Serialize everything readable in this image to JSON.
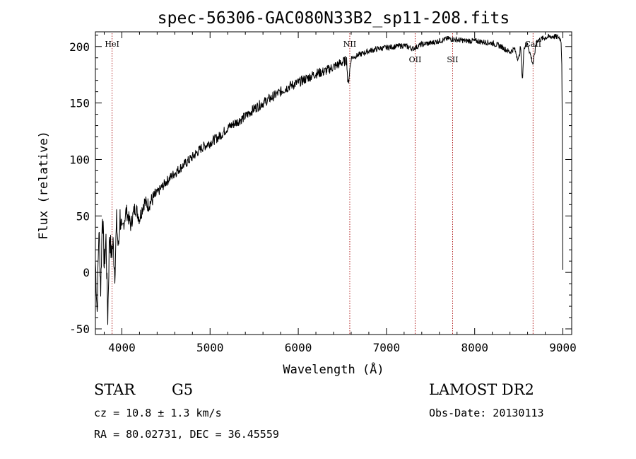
{
  "chart_data": {
    "type": "line",
    "title": "spec-56306-GAC080N33B2_sp11-208.fits",
    "xlabel": "Wavelength (Å)",
    "ylabel": "Flux (relative)",
    "xlim": [
      3700,
      9100
    ],
    "ylim": [
      -55,
      213
    ],
    "xticks": [
      4000,
      5000,
      6000,
      7000,
      8000,
      9000
    ],
    "yticks": [
      -50,
      0,
      50,
      100,
      150,
      200
    ],
    "xtick_labels": [
      "4000",
      "5000",
      "6000",
      "7000",
      "8000",
      "9000"
    ],
    "ytick_labels": [
      "-50",
      "0",
      "50",
      "100",
      "150",
      "200"
    ],
    "grid": false,
    "series": [
      {
        "color": "#000000",
        "x": [
          3700,
          3720,
          3740,
          3760,
          3780,
          3800,
          3820,
          3840,
          3860,
          3880,
          3900,
          3920,
          3940,
          3960,
          3980,
          4000,
          4050,
          4100,
          4150,
          4200,
          4250,
          4300,
          4400,
          4500,
          4600,
          4700,
          4800,
          4900,
          5000,
          5100,
          5200,
          5300,
          5400,
          5500,
          5600,
          5700,
          5800,
          5900,
          6000,
          6100,
          6200,
          6300,
          6400,
          6500,
          6550,
          6563,
          6600,
          6700,
          6800,
          6900,
          7000,
          7100,
          7200,
          7300,
          7400,
          7500,
          7600,
          7700,
          7800,
          7900,
          8000,
          8100,
          8200,
          8300,
          8400,
          8450,
          8498,
          8520,
          8542,
          8560,
          8600,
          8662,
          8700,
          8800,
          8900,
          8960,
          8980,
          8990,
          9000
        ],
        "y": [
          10,
          -35,
          40,
          -15,
          55,
          5,
          30,
          -40,
          35,
          15,
          25,
          0,
          45,
          20,
          50,
          35,
          55,
          42,
          58,
          48,
          62,
          60,
          70,
          80,
          88,
          95,
          102,
          110,
          115,
          120,
          128,
          133,
          138,
          145,
          150,
          155,
          160,
          165,
          168,
          172,
          176,
          178,
          182,
          186,
          188,
          165,
          190,
          193,
          196,
          198,
          199,
          200,
          201,
          198,
          202,
          203,
          205,
          207,
          206,
          205,
          205,
          204,
          203,
          200,
          195,
          198,
          188,
          200,
          170,
          200,
          202,
          184,
          205,
          208,
          209,
          208,
          205,
          180,
          0
        ]
      }
    ],
    "spectral_lines": [
      {
        "label": "HeI",
        "x": 3889,
        "label_pos": "top"
      },
      {
        "label": "NII",
        "x": 6584,
        "label_pos": "top"
      },
      {
        "label": "OII",
        "x": 7325,
        "label_pos": "middle"
      },
      {
        "label": "SII",
        "x": 7750,
        "label_pos": "middle"
      },
      {
        "label": "CaII",
        "x": 8662,
        "label_pos": "top"
      }
    ]
  },
  "info": {
    "class": "STAR",
    "subclass": "G5",
    "survey": "LAMOST DR2",
    "cz": "cz = 10.8 ± 1.3 km/s",
    "obs_date": "Obs-Date: 20130113",
    "coords": "RA =  80.02731, DEC =  36.45559"
  },
  "colors": {
    "line_marker": "#b22222",
    "spectrum": "#000000",
    "axes": "#000000"
  }
}
